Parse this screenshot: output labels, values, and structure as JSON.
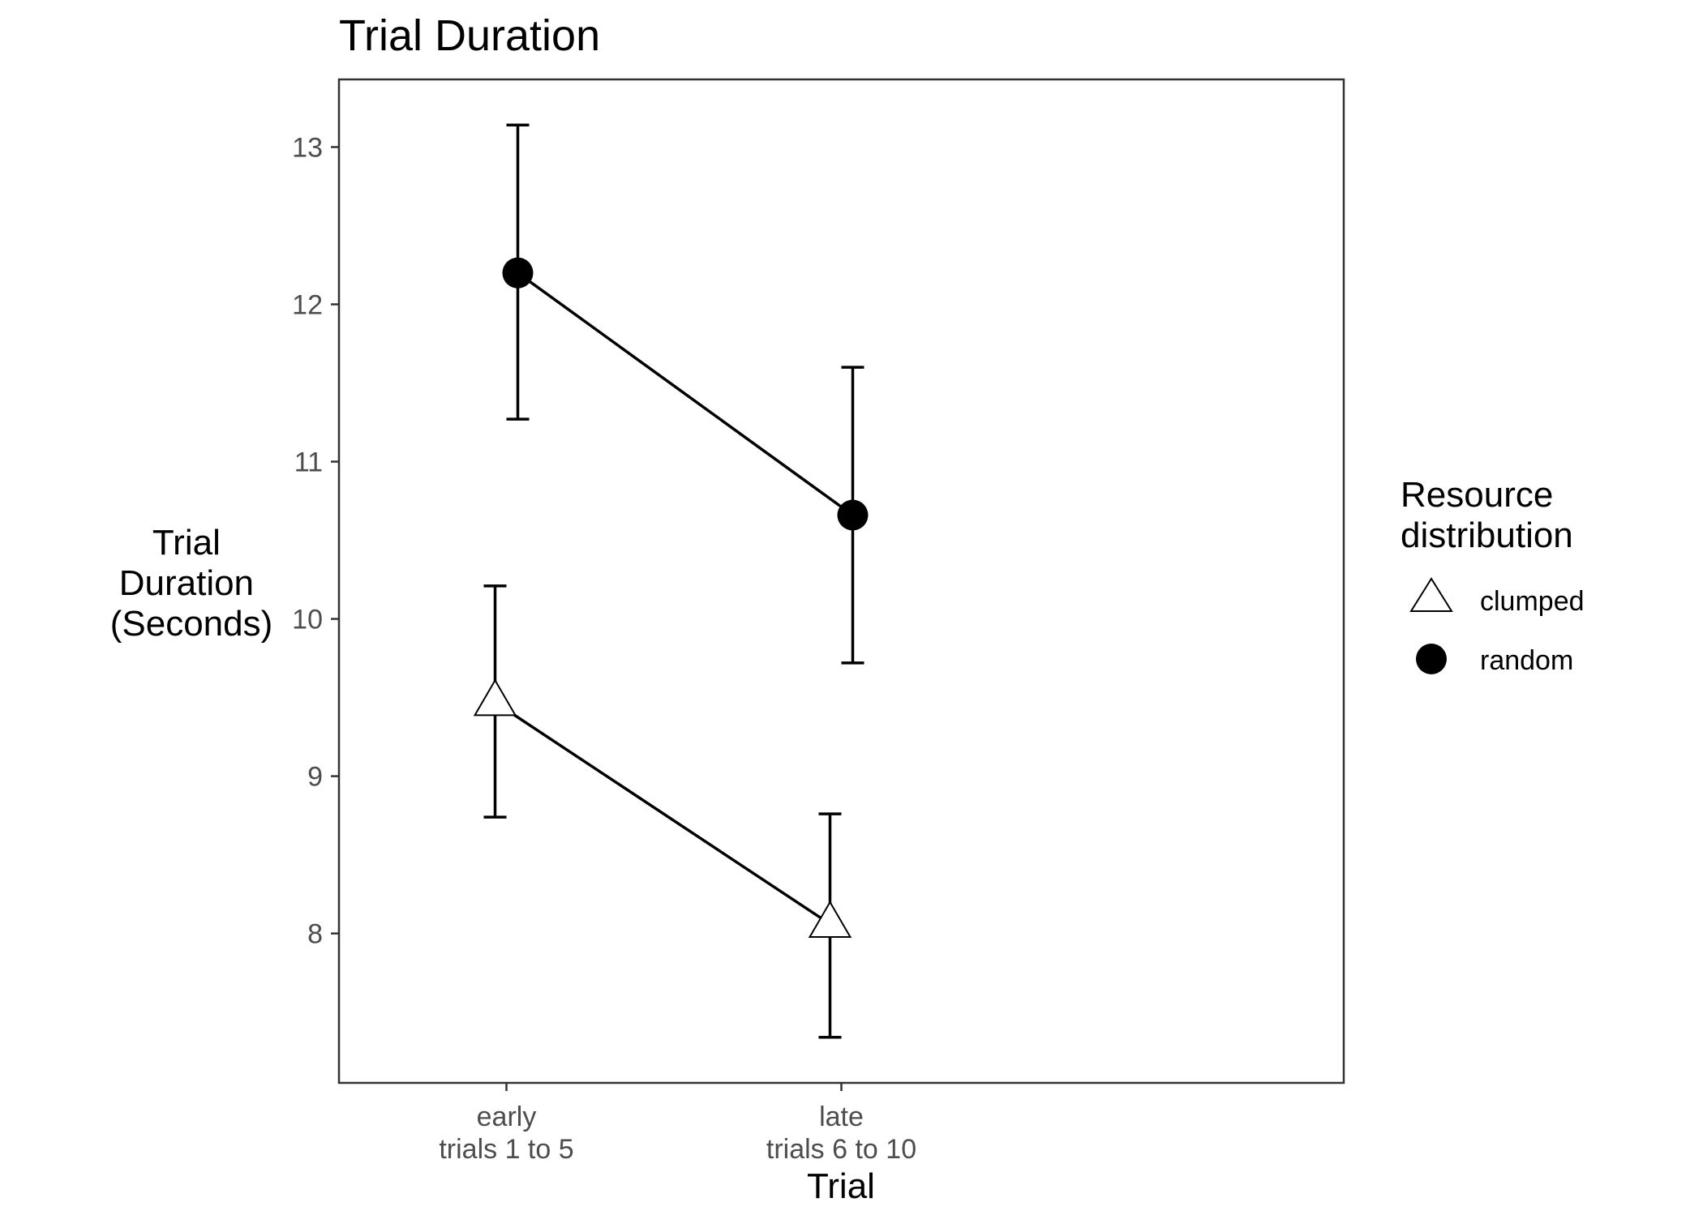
{
  "chart_data": {
    "type": "line",
    "title": "Trial Duration",
    "xlabel": "Trial",
    "ylabel": [
      "Trial",
      "Duration",
      "(Seconds)"
    ],
    "categories": [
      [
        "early",
        "trials 1 to 5"
      ],
      [
        "late",
        "trials 6 to 10"
      ]
    ],
    "ylim": [
      7.05,
      13.43
    ],
    "yticks": [
      8,
      9,
      10,
      11,
      12,
      13
    ],
    "grid": false,
    "legend": {
      "title": [
        "Resource",
        "distribution"
      ],
      "position": "right"
    },
    "series": [
      {
        "name": "clumped",
        "marker": "open-triangle",
        "color": "#000000",
        "dodge": -1,
        "values": [
          9.47,
          8.06
        ],
        "error_low": [
          8.74,
          7.34
        ],
        "error_high": [
          10.21,
          8.76
        ]
      },
      {
        "name": "random",
        "marker": "filled-circle",
        "color": "#000000",
        "dodge": 1,
        "values": [
          12.2,
          10.66
        ],
        "error_low": [
          11.27,
          9.72
        ],
        "error_high": [
          13.14,
          11.6
        ]
      }
    ]
  }
}
